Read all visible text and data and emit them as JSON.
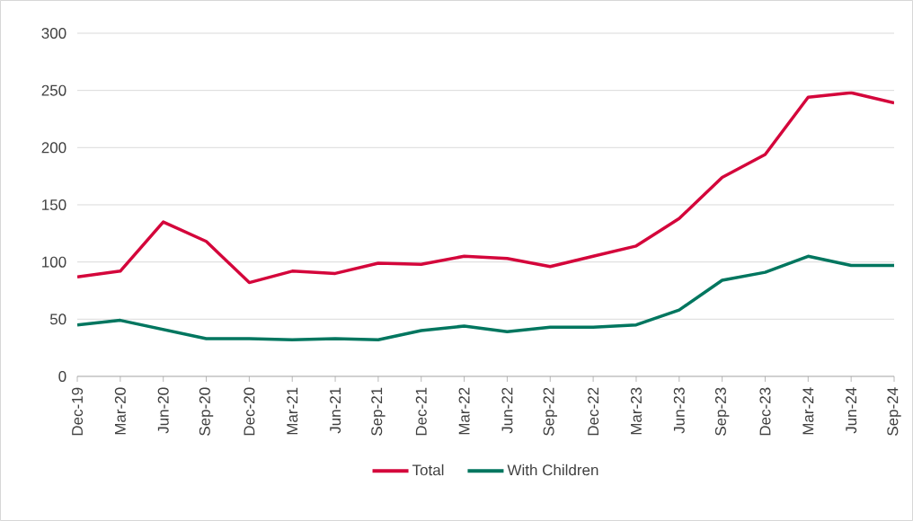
{
  "chart_data": {
    "type": "line",
    "categories": [
      "Dec-19",
      "Mar-20",
      "Jun-20",
      "Sep-20",
      "Dec-20",
      "Mar-21",
      "Jun-21",
      "Sep-21",
      "Dec-21",
      "Mar-22",
      "Jun-22",
      "Sep-22",
      "Dec-22",
      "Mar-23",
      "Jun-23",
      "Sep-23",
      "Dec-23",
      "Mar-24",
      "Jun-24",
      "Sep-24"
    ],
    "series": [
      {
        "name": "Total",
        "color": "#d4063b",
        "values": [
          87,
          92,
          135,
          118,
          82,
          92,
          90,
          99,
          98,
          105,
          103,
          96,
          105,
          114,
          138,
          174,
          194,
          244,
          248,
          239
        ]
      },
      {
        "name": "With Children",
        "color": "#00765f",
        "values": [
          45,
          49,
          41,
          33,
          33,
          32,
          33,
          32,
          40,
          44,
          39,
          43,
          43,
          45,
          58,
          84,
          91,
          105,
          97,
          97
        ]
      }
    ],
    "ylim": [
      0,
      300
    ],
    "yticks": [
      0,
      50,
      100,
      150,
      200,
      250,
      300
    ],
    "grid": "y",
    "legend": "bottom"
  }
}
